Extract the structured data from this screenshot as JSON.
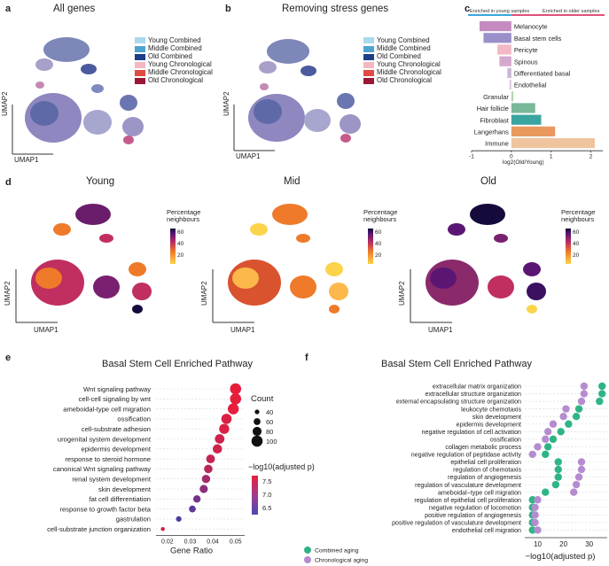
{
  "panels": {
    "a": {
      "letter": "a",
      "title": "All genes",
      "xlabel": "UMAP1",
      "ylabel": "UMAP2"
    },
    "b": {
      "letter": "b",
      "title": "Removing stress genes",
      "xlabel": "UMAP1",
      "ylabel": "UMAP2"
    },
    "d": {
      "letter": "d",
      "titles": [
        "Young",
        "Mid",
        "Old"
      ],
      "xlabel": "UMAP1",
      "ylabel": "UMAP2",
      "colorbar_title": "Percentage neighbours",
      "colorbar_ticks": [
        "60",
        "40",
        "20"
      ]
    },
    "e": {
      "letter": "e"
    },
    "f": {
      "letter": "f"
    }
  },
  "age_legend": [
    {
      "label": "Young Combined",
      "color": "#a9d9ea"
    },
    {
      "label": "Middle Combined",
      "color": "#4fa3cf"
    },
    {
      "label": "Old Combined",
      "color": "#1d3f87"
    },
    {
      "label": "Young Chronological",
      "color": "#f3b7bf"
    },
    {
      "label": "Middle Chronological",
      "color": "#e14a40"
    },
    {
      "label": "Old Chronological",
      "color": "#9b1738"
    }
  ],
  "colors": {
    "umap_young": "#a9d9ea",
    "umap_mid": "#c45a8a",
    "umap_old": "#1d3f87"
  },
  "chart_data": [
    {
      "panel": "c",
      "type": "bar",
      "orientation": "horizontal",
      "header_left": "Enriched in young samples",
      "header_right": "Enriched in older samples",
      "xlabel": "log2(Old/Young)",
      "xlim": [
        -1,
        2.3
      ],
      "xticks": [
        "-1",
        "0",
        "1",
        "2"
      ],
      "categories": [
        "Melanocyte",
        "Basal stem cells",
        "Pericyte",
        "Spinous",
        "Differentiated basal",
        "Endothelial",
        "Granular",
        "Hair follicle",
        "Fibroblast",
        "Langerhans",
        "Immune"
      ],
      "values": [
        -0.8,
        -0.7,
        -0.35,
        -0.3,
        -0.1,
        -0.05,
        0.05,
        0.6,
        0.75,
        1.1,
        2.1
      ],
      "colors": [
        "#c58ac0",
        "#9b8fc9",
        "#f2b8c6",
        "#d6a7cf",
        "#c9b6d8",
        "#e0c9e3",
        "#b5d6b3",
        "#7ab89a",
        "#3aa5a0",
        "#e9995e",
        "#f0c49e"
      ]
    },
    {
      "panel": "e",
      "type": "scatter",
      "title": "Basal Stem Cell Enriched Pathway",
      "xlabel": "Gene Ratio",
      "xticks": [
        "0.02",
        "0.03",
        "0.04",
        "0.05"
      ],
      "xlim": [
        0.015,
        0.054
      ],
      "size_legend_title": "Count",
      "size_legend": [
        "40",
        "60",
        "80",
        "100"
      ],
      "color_legend_title": "−log10(adjusted p)",
      "color_legend_ticks": [
        "7.5",
        "7.0",
        "6.5"
      ],
      "categories": [
        "Wnt signaling pathway",
        "cell-cell signaling by wnt",
        "ameboidal-type cell migration",
        "ossification",
        "cell-substrate adhesion",
        "urogenital system development",
        "epidermis development",
        "response to steroid hormone",
        "canonical Wnt signaling pathway",
        "renal system development",
        "skin development",
        "fat cell differentiation",
        "response to growth factor beta",
        "gastrulation",
        "cell-substrate junction organization"
      ],
      "gene_ratio": [
        0.05,
        0.05,
        0.049,
        0.046,
        0.045,
        0.043,
        0.042,
        0.039,
        0.038,
        0.037,
        0.036,
        0.033,
        0.031,
        0.025,
        0.018
      ],
      "count": [
        100,
        100,
        98,
        92,
        90,
        85,
        83,
        78,
        76,
        74,
        72,
        66,
        60,
        48,
        34
      ],
      "neglog10p": [
        7.8,
        7.8,
        7.8,
        7.7,
        7.7,
        7.6,
        7.6,
        7.5,
        7.4,
        7.2,
        7.0,
        6.8,
        6.6,
        6.5,
        7.6
      ]
    },
    {
      "panel": "f",
      "type": "scatter",
      "title": "Basal Stem Cell Enriched Pathway",
      "xlabel": "−log10(adjusted p)",
      "xticks": [
        "10",
        "20",
        "30"
      ],
      "xlim": [
        5,
        37
      ],
      "series": [
        {
          "name": "Combined aging",
          "color": "#2fb585",
          "values": [
            35,
            35,
            34,
            26,
            25,
            22,
            19,
            16,
            14,
            13,
            18,
            18,
            18,
            17,
            13,
            8,
            8,
            8,
            8,
            8
          ]
        },
        {
          "name": "Chronological aging",
          "color": "#b58cd0",
          "values": [
            28,
            28,
            27,
            21,
            20,
            16,
            14,
            13,
            10,
            8,
            27,
            27,
            26,
            25,
            24,
            10,
            9,
            9,
            9,
            10
          ]
        }
      ],
      "categories": [
        "extracellular matrix organization",
        "extracellular structure organization",
        "external encapsulating structure organization",
        "leukocyte chemotaxis",
        "skin development",
        "epidermis development",
        "negative regulation of cell activation",
        "ossification",
        "collagen metabolic process",
        "negative regulation of peptidase activity",
        "epithelial cell proliferation",
        "regulation of chemotaxis",
        "regulation of angiogenesis",
        "regulation of vasculature development",
        "ameboidal−type cell migration",
        "regulation of epithelial cell proliferation",
        "negative regulation of locomotion",
        "positive regulation of angiogenesis",
        "positive regulation of vasculature development",
        "endothelial cell migration"
      ]
    }
  ]
}
